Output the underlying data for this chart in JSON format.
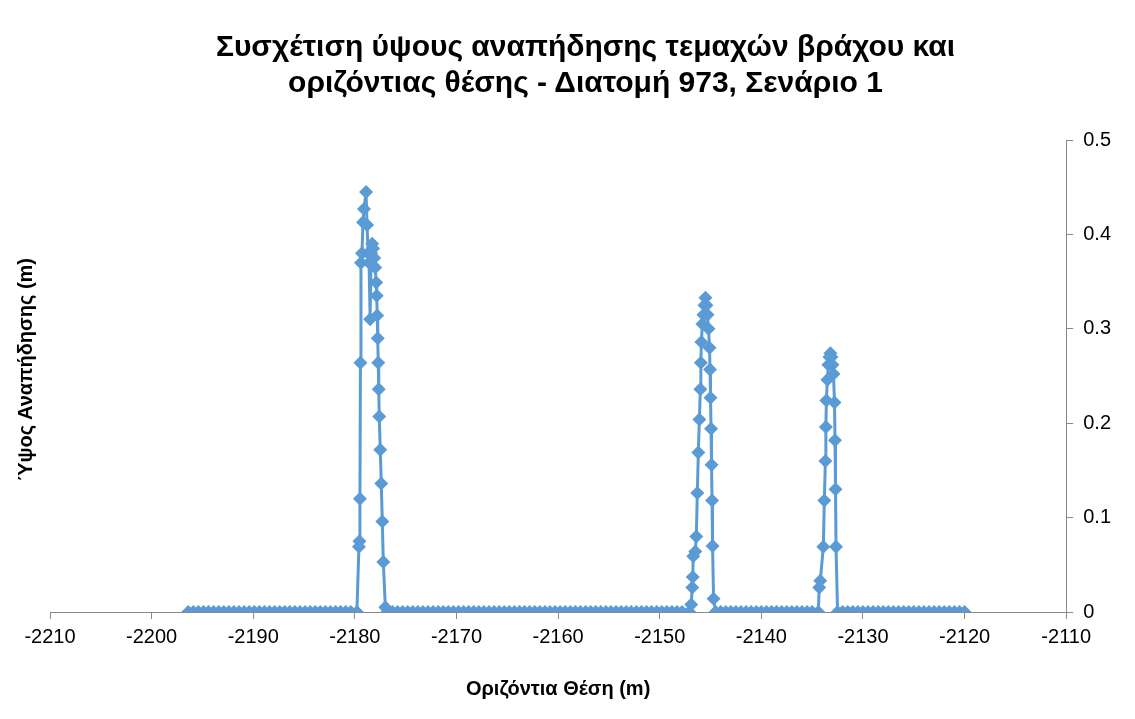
{
  "chart_data": {
    "type": "line",
    "title": "Συσχέτιση ύψους αναπήδησης τεμαχών βράχου και\nοριζόντιας θέσης - Διατομή 973, Σενάριο 1",
    "xlabel": "Οριζόντια Θέση (m)",
    "ylabel": "Ύψος Αναπήδησης (m)",
    "x": [
      -2196.4,
      -2195.9,
      -2195.4,
      -2194.9,
      -2194.4,
      -2193.9,
      -2193.4,
      -2192.9,
      -2192.4,
      -2191.9,
      -2191.4,
      -2190.9,
      -2190.4,
      -2189.9,
      -2189.4,
      -2188.9,
      -2188.4,
      -2187.9,
      -2187.4,
      -2186.9,
      -2186.4,
      -2185.9,
      -2185.4,
      -2184.9,
      -2184.4,
      -2183.9,
      -2183.4,
      -2182.9,
      -2182.4,
      -2181.9,
      -2181.4,
      -2180.9,
      -2180.4,
      -2179.8,
      -2179.6,
      -2179.55,
      -2179.5,
      -2179.45,
      -2179.4,
      -2179.3,
      -2179.2,
      -2179.1,
      -2178.9,
      -2178.8,
      -2178.7,
      -2178.6,
      -2178.5,
      -2178.4,
      -2178.3,
      -2178.2,
      -2178.1,
      -2178.0,
      -2177.9,
      -2177.85,
      -2177.8,
      -2177.75,
      -2177.7,
      -2177.65,
      -2177.6,
      -2177.5,
      -2177.4,
      -2177.3,
      -2177.2,
      -2177.0,
      -2176.8,
      -2176.3,
      -2175.8,
      -2175.3,
      -2174.8,
      -2174.3,
      -2173.8,
      -2173.3,
      -2172.8,
      -2172.3,
      -2171.8,
      -2171.3,
      -2170.8,
      -2170.3,
      -2169.8,
      -2169.3,
      -2168.8,
      -2168.3,
      -2167.8,
      -2167.3,
      -2166.8,
      -2166.3,
      -2165.8,
      -2165.3,
      -2164.8,
      -2164.3,
      -2163.8,
      -2163.3,
      -2162.8,
      -2162.3,
      -2161.8,
      -2161.3,
      -2160.8,
      -2160.3,
      -2159.8,
      -2159.3,
      -2158.8,
      -2158.3,
      -2157.8,
      -2157.3,
      -2156.8,
      -2156.3,
      -2155.8,
      -2155.3,
      -2154.8,
      -2154.3,
      -2153.8,
      -2153.3,
      -2152.8,
      -2152.3,
      -2151.8,
      -2151.3,
      -2150.8,
      -2150.3,
      -2149.8,
      -2149.3,
      -2148.8,
      -2148.3,
      -2147.8,
      -2147.1,
      -2146.9,
      -2146.8,
      -2146.75,
      -2146.7,
      -2146.5,
      -2146.4,
      -2146.3,
      -2146.2,
      -2146.1,
      -2146.0,
      -2145.95,
      -2145.9,
      -2145.8,
      -2145.7,
      -2145.6,
      -2145.5,
      -2145.4,
      -2145.3,
      -2145.2,
      -2145.1,
      -2145.05,
      -2145.0,
      -2144.95,
      -2144.9,
      -2144.85,
      -2144.8,
      -2144.7,
      -2144.5,
      -2144.0,
      -2143.5,
      -2143.0,
      -2142.5,
      -2142.0,
      -2141.5,
      -2141.0,
      -2140.5,
      -2140.0,
      -2139.5,
      -2139.0,
      -2138.5,
      -2138.0,
      -2137.5,
      -2137.0,
      -2136.5,
      -2136.0,
      -2135.5,
      -2135.0,
      -2134.4,
      -2134.3,
      -2134.2,
      -2133.9,
      -2133.8,
      -2133.7,
      -2133.65,
      -2133.6,
      -2133.5,
      -2133.4,
      -2133.3,
      -2133.2,
      -2133.1,
      -2133.0,
      -2132.9,
      -2132.8,
      -2132.75,
      -2132.7,
      -2132.65,
      -2132.5,
      -2132.0,
      -2131.5,
      -2131.0,
      -2130.5,
      -2130.0,
      -2129.5,
      -2129.0,
      -2128.5,
      -2128.0,
      -2127.5,
      -2127.0,
      -2126.5,
      -2126.0,
      -2125.5,
      -2125.0,
      -2124.5,
      -2124.0,
      -2123.5,
      -2123.0,
      -2122.5,
      -2122.0,
      -2121.5,
      -2121.0,
      -2120.5,
      -2120.0
    ],
    "values": [
      0,
      0,
      0,
      0,
      0,
      0,
      0,
      0,
      0,
      0,
      0,
      0,
      0,
      0,
      0,
      0,
      0,
      0,
      0,
      0,
      0,
      0,
      0,
      0,
      0,
      0,
      0,
      0,
      0,
      0,
      0,
      0,
      0,
      0,
      0.069,
      0.075,
      0.12,
      0.264,
      0.37,
      0.38,
      0.413,
      0.427,
      0.445,
      0.41,
      0.38,
      0.37,
      0.31,
      0.38,
      0.39,
      0.385,
      0.375,
      0.365,
      0.349,
      0.335,
      0.314,
      0.29,
      0.264,
      0.236,
      0.207,
      0.172,
      0.136,
      0.096,
      0.053,
      0.005,
      0,
      0,
      0,
      0,
      0,
      0,
      0,
      0,
      0,
      0,
      0,
      0,
      0,
      0,
      0,
      0,
      0,
      0,
      0,
      0,
      0,
      0,
      0,
      0,
      0,
      0,
      0,
      0,
      0,
      0,
      0,
      0,
      0,
      0,
      0,
      0,
      0,
      0,
      0,
      0,
      0,
      0,
      0,
      0,
      0,
      0,
      0,
      0,
      0,
      0,
      0,
      0,
      0,
      0,
      0,
      0,
      0,
      0,
      0,
      0,
      0.008,
      0.026,
      0.037,
      0.059,
      0.064,
      0.08,
      0.126,
      0.169,
      0.204,
      0.236,
      0.264,
      0.286,
      0.305,
      0.315,
      0.325,
      0.333,
      0.325,
      0.315,
      0.3,
      0.28,
      0.257,
      0.227,
      0.194,
      0.156,
      0.118,
      0.07,
      0.014,
      0,
      0,
      0,
      0,
      0,
      0,
      0,
      0,
      0,
      0,
      0,
      0,
      0,
      0,
      0,
      0,
      0,
      0,
      0,
      0,
      0,
      0.026,
      0.033,
      0.069,
      0.118,
      0.16,
      0.196,
      0.224,
      0.246,
      0.262,
      0.27,
      0.274,
      0.27,
      0.262,
      0.252,
      0.222,
      0.182,
      0.13,
      0.069,
      0,
      0,
      0,
      0,
      0,
      0,
      0,
      0,
      0,
      0,
      0,
      0,
      0,
      0,
      0,
      0,
      0,
      0,
      0,
      0,
      0,
      0,
      0,
      0,
      0,
      0
    ],
    "color": "#5b9bd5",
    "marker": "diamond",
    "line_style": "solid",
    "xlim": [
      -2210,
      -2110
    ],
    "xticks": [
      -2210,
      -2200,
      -2190,
      -2180,
      -2170,
      -2160,
      -2150,
      -2140,
      -2130,
      -2120,
      -2110
    ],
    "ylim": [
      0,
      0.5
    ],
    "yticks": [
      0,
      0.1,
      0.2,
      0.3,
      0.4,
      0.5
    ],
    "grid": false,
    "legend": false
  }
}
